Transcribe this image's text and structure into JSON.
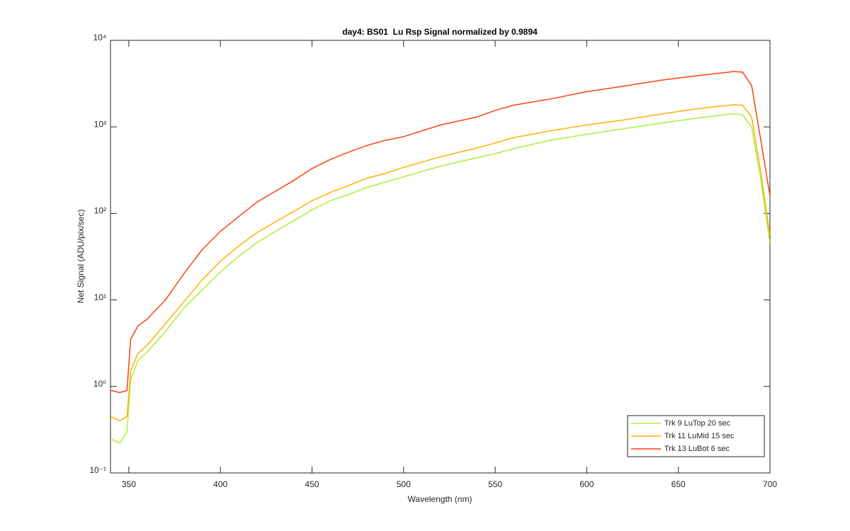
{
  "chart_data": {
    "type": "line",
    "title": "day4: BS01  Lu Rsp Signal normalized by 0.9894",
    "x_label": "Wavelength (nm)",
    "y_label": "Net Signal (ADU/pix/sec)",
    "yscale": "log",
    "xlim": [
      340,
      700
    ],
    "ylim": [
      0.1,
      10000
    ],
    "xticks": [
      350,
      400,
      450,
      500,
      550,
      600,
      650,
      700
    ],
    "yticks": [
      {
        "value": 0.1,
        "label": "10⁻¹"
      },
      {
        "value": 1,
        "label": "10⁰"
      },
      {
        "value": 10,
        "label": "10¹"
      },
      {
        "value": 100,
        "label": "10²"
      },
      {
        "value": 1000,
        "label": "10³"
      },
      {
        "value": 10000,
        "label": "10⁴"
      }
    ],
    "legend_position": "lower right",
    "x": [
      340,
      345,
      349,
      351,
      355,
      360,
      370,
      380,
      390,
      400,
      410,
      420,
      430,
      440,
      450,
      460,
      470,
      480,
      490,
      500,
      520,
      540,
      550,
      560,
      580,
      600,
      620,
      640,
      660,
      680,
      685,
      690,
      695,
      700
    ],
    "series": [
      {
        "name": "Trk 9 LuTop 20 sec",
        "color": "#a8f03c",
        "values": [
          0.25,
          0.22,
          0.3,
          1.2,
          2.0,
          2.5,
          4.3,
          8,
          13,
          21,
          32,
          46,
          62,
          82,
          110,
          140,
          165,
          200,
          230,
          265,
          350,
          440,
          490,
          560,
          700,
          820,
          950,
          1100,
          1260,
          1420,
          1380,
          1000,
          250,
          45
        ]
      },
      {
        "name": "Trk 11 LuMid 15 sec",
        "color": "#ffb000",
        "values": [
          0.45,
          0.4,
          0.45,
          1.5,
          2.4,
          3.0,
          5.3,
          9.5,
          17,
          28,
          42,
          60,
          80,
          105,
          140,
          175,
          210,
          255,
          290,
          340,
          450,
          570,
          650,
          750,
          900,
          1050,
          1200,
          1400,
          1620,
          1800,
          1780,
          1300,
          300,
          55
        ]
      },
      {
        "name": "Trk 13 LuBot 6 sec",
        "color": "#ff4010",
        "values": [
          0.9,
          0.85,
          0.9,
          3.5,
          5.0,
          6.0,
          10,
          20,
          38,
          62,
          92,
          135,
          180,
          240,
          330,
          420,
          510,
          610,
          700,
          770,
          1050,
          1300,
          1550,
          1780,
          2100,
          2550,
          2950,
          3450,
          3900,
          4350,
          4300,
          3000,
          700,
          160
        ]
      }
    ]
  }
}
